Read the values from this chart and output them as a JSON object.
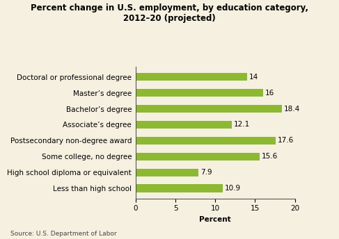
{
  "title": "Percent change in U.S. employment, by education category,\n2012–20 (projected)",
  "categories": [
    "Doctoral or professional degree",
    "Master’s degree",
    "Bachelor’s degree",
    "Associate’s degree",
    "Postsecondary non-degree award",
    "Some college, no degree",
    "High school diploma or equivalent",
    "Less than high school"
  ],
  "values": [
    14.0,
    16.0,
    18.4,
    12.1,
    17.6,
    15.6,
    7.9,
    10.9
  ],
  "bar_color": "#8db832",
  "background_color": "#f5f0e0",
  "xlabel": "Percent",
  "xlim": [
    0,
    20
  ],
  "xticks": [
    0,
    5,
    10,
    15,
    20
  ],
  "source_text": "Source: U.S. Department of Labor",
  "title_fontsize": 8.5,
  "label_fontsize": 7.5,
  "tick_fontsize": 7.5,
  "value_fontsize": 7.5,
  "source_fontsize": 6.5,
  "bar_height": 0.5
}
